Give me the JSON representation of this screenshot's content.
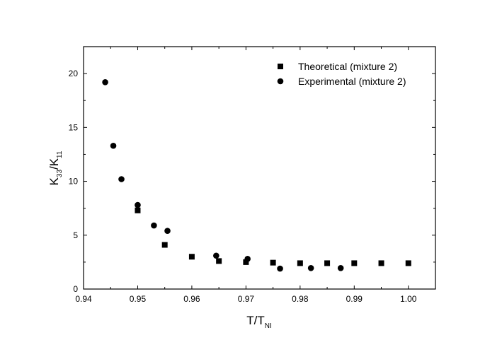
{
  "chart_data": {
    "type": "scatter",
    "xlabel": {
      "main": "T/T",
      "sub": "NI"
    },
    "ylabel": {
      "main1": "K",
      "sub1": "33",
      "main2": "/K",
      "sub2": "11"
    },
    "xlim": [
      0.94,
      1.005
    ],
    "ylim": [
      0,
      22.5
    ],
    "xticks": [
      0.94,
      0.95,
      0.96,
      0.97,
      0.98,
      0.99,
      1.0
    ],
    "xtick_labels": [
      "0.94",
      "0.95",
      "0.96",
      "0.97",
      "0.98",
      "0.99",
      "1.00"
    ],
    "yticks": [
      0,
      5,
      10,
      15,
      20
    ],
    "ytick_labels": [
      "0",
      "5",
      "10",
      "15",
      "20"
    ],
    "legend_position": "top-right",
    "series": [
      {
        "name": "Theoretical (mixture 2)",
        "marker": "square",
        "color": "#000000",
        "x": [
          0.95,
          0.955,
          0.96,
          0.965,
          0.97,
          0.975,
          0.98,
          0.985,
          0.99,
          0.995,
          1.0
        ],
        "y": [
          7.3,
          4.1,
          3.0,
          2.6,
          2.5,
          2.45,
          2.4,
          2.4,
          2.4,
          2.4,
          2.4
        ]
      },
      {
        "name": "Experimental (mixture 2)",
        "marker": "circle",
        "color": "#000000",
        "x": [
          0.944,
          0.9455,
          0.947,
          0.95,
          0.953,
          0.9555,
          0.9645,
          0.9703,
          0.9763,
          0.982,
          0.9875
        ],
        "y": [
          19.2,
          13.3,
          10.2,
          7.8,
          5.9,
          5.4,
          3.1,
          2.8,
          1.9,
          1.95,
          1.95
        ]
      }
    ]
  }
}
